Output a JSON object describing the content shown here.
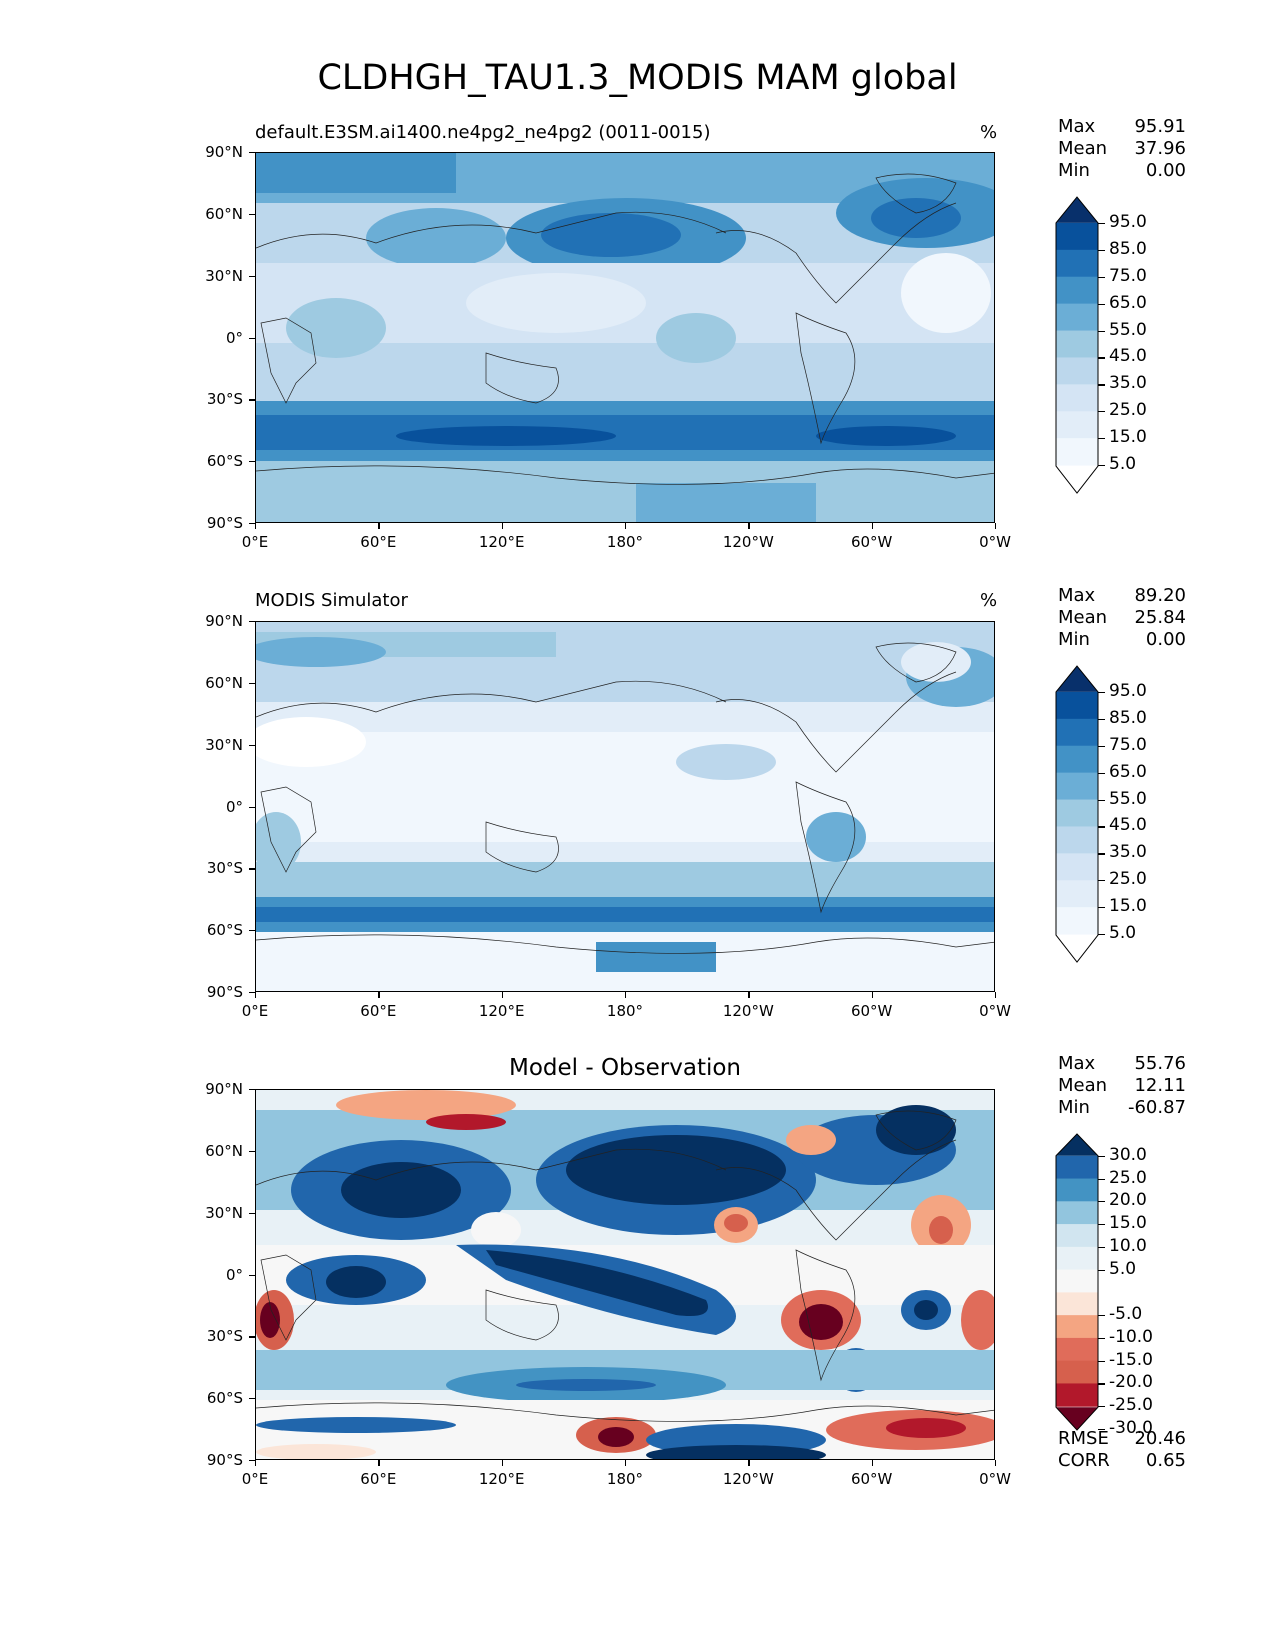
{
  "figure_title": "CLDHGH_TAU1.3_MODIS MAM global",
  "panels": [
    {
      "title_left": "default.E3SM.ai1400.ne4pg2_ne4pg2 (0011-0015)",
      "title_center": "",
      "units": "%",
      "stats": [
        {
          "label": "Max",
          "value": "95.91"
        },
        {
          "label": "Mean",
          "value": "37.96"
        },
        {
          "label": "Min",
          "value": "0.00"
        }
      ],
      "colorbar_labels": [
        "95.0",
        "85.0",
        "75.0",
        "65.0",
        "55.0",
        "45.0",
        "35.0",
        "25.0",
        "15.0",
        "5.0"
      ],
      "colors": [
        "#08306b",
        "#08519c",
        "#2171b5",
        "#4292c6",
        "#6baed6",
        "#9ecae1",
        "#bcd7ec",
        "#d4e4f4",
        "#e2edf8",
        "#f1f7fd",
        "#ffffff"
      ]
    },
    {
      "title_left": "MODIS Simulator",
      "title_center": "",
      "units": "%",
      "stats": [
        {
          "label": "Max",
          "value": "89.20"
        },
        {
          "label": "Mean",
          "value": "25.84"
        },
        {
          "label": "Min",
          "value": "0.00"
        }
      ],
      "colorbar_labels": [
        "95.0",
        "85.0",
        "75.0",
        "65.0",
        "55.0",
        "45.0",
        "35.0",
        "25.0",
        "15.0",
        "5.0"
      ],
      "colors": [
        "#08306b",
        "#08519c",
        "#2171b5",
        "#4292c6",
        "#6baed6",
        "#9ecae1",
        "#bcd7ec",
        "#d4e4f4",
        "#e2edf8",
        "#f1f7fd",
        "#ffffff"
      ]
    },
    {
      "title_left": "",
      "title_center": "Model - Observation",
      "units": "",
      "stats": [
        {
          "label": "Max",
          "value": "55.76"
        },
        {
          "label": "Mean",
          "value": "12.11"
        },
        {
          "label": "Min",
          "value": "-60.87"
        }
      ],
      "colorbar_labels": [
        "30.0",
        "25.0",
        "20.0",
        "15.0",
        "10.0",
        "5.0",
        "-5.0",
        "-10.0",
        "-15.0",
        "-20.0",
        "-25.0",
        "-30.0"
      ],
      "colors": [
        "#053061",
        "#2166ac",
        "#4393c3",
        "#92c5de",
        "#d1e5f0",
        "#e8f1f6",
        "#f7f7f7",
        "#fbe5d8",
        "#f4a582",
        "#e06c5a",
        "#d6604d",
        "#b2182b",
        "#67001f"
      ],
      "bottom_stats": [
        {
          "label": "RMSE",
          "value": "20.46"
        },
        {
          "label": "CORR",
          "value": "0.65"
        }
      ]
    }
  ],
  "lat_labels": [
    "90°N",
    "60°N",
    "30°N",
    "0°",
    "30°S",
    "60°S",
    "90°S"
  ],
  "lon_labels": [
    "0°E",
    "60°E",
    "120°E",
    "180°",
    "120°W",
    "60°W",
    "0°W"
  ]
}
